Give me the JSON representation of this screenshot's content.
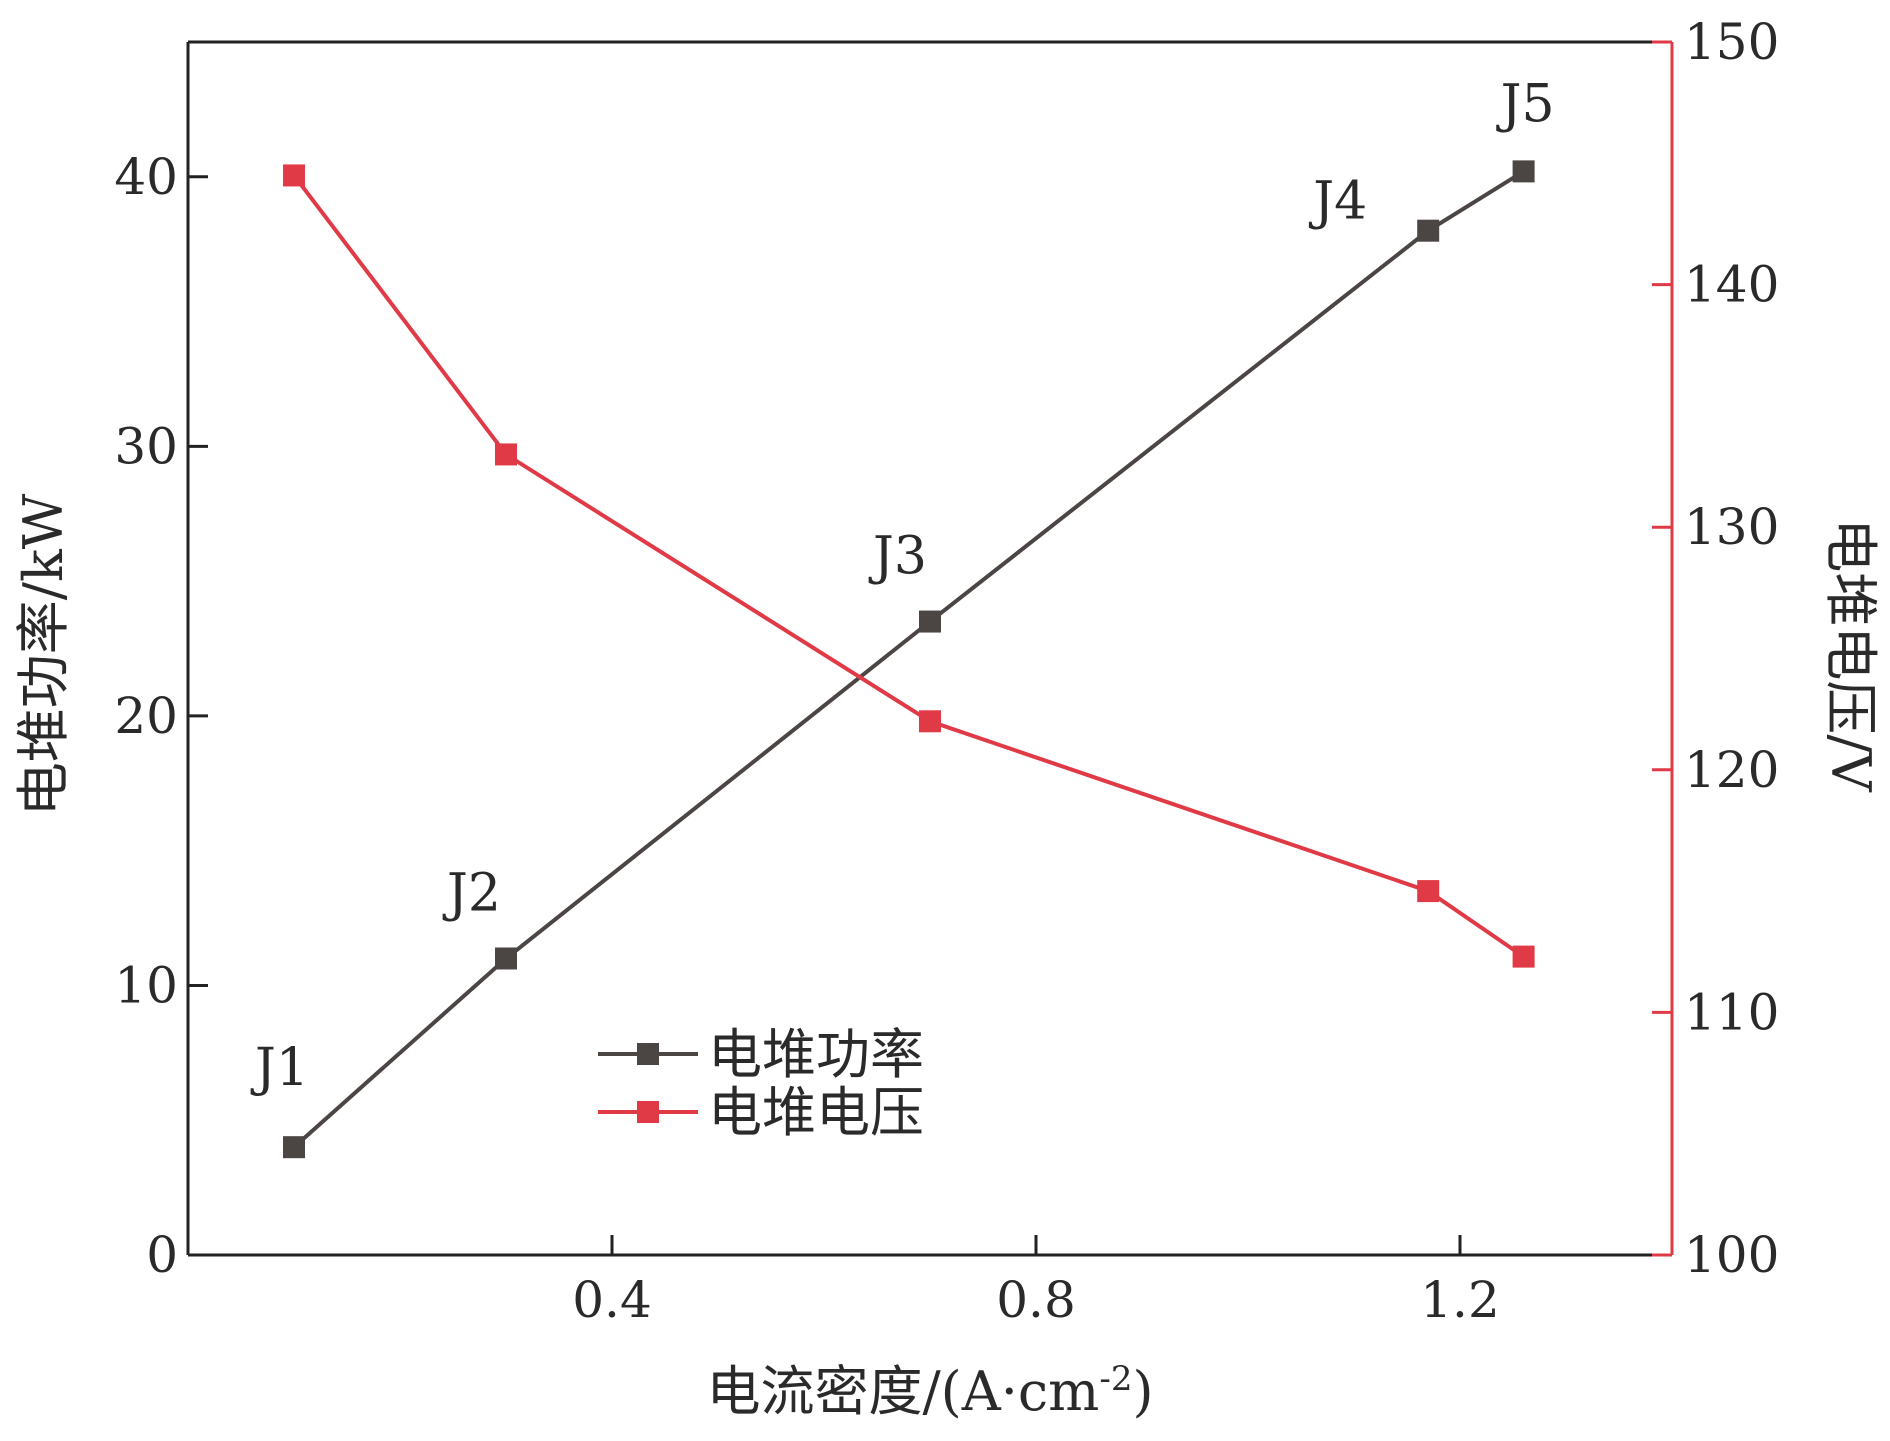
{
  "colors": {
    "power": "#4b4544",
    "voltage": "#e03a47",
    "axis_left": "#222222",
    "axis_right": "#e03a47",
    "text": "#2a2a2a"
  },
  "chart_data": {
    "type": "line",
    "xlabel_main": "电流密度/(A·cm",
    "xlabel_sup": "-2",
    "xlabel_close": ")",
    "ylabel_left": "电堆功率/kW",
    "ylabel_right": "电堆电压/V",
    "xlim": [
      0,
      1.4
    ],
    "xticks": [
      0.4,
      0.8,
      1.2
    ],
    "xtick_labels": [
      "0.4",
      "0.8",
      "1.2"
    ],
    "ylim_left": [
      0,
      45
    ],
    "yticks_left": [
      0,
      10,
      20,
      30,
      40
    ],
    "ytick_labels_left": [
      "0",
      "10",
      "20",
      "30",
      "40"
    ],
    "ylim_right": [
      100,
      150
    ],
    "yticks_right": [
      100,
      110,
      120,
      130,
      140,
      150
    ],
    "ytick_labels_right": [
      "100",
      "110",
      "120",
      "130",
      "140",
      "150"
    ],
    "x": [
      0.1,
      0.3,
      0.7,
      1.17,
      1.26
    ],
    "point_labels": [
      "J1",
      "J2",
      "J3",
      "J4",
      "J5"
    ],
    "series": [
      {
        "name": "电堆功率",
        "axis": "left",
        "values": [
          4.0,
          11.0,
          23.5,
          38.0,
          40.2
        ]
      },
      {
        "name": "电堆电压",
        "axis": "right",
        "values": [
          144.5,
          133.0,
          122.0,
          115.0,
          112.3
        ]
      }
    ],
    "legend_position": "lower-center",
    "grid": false
  }
}
